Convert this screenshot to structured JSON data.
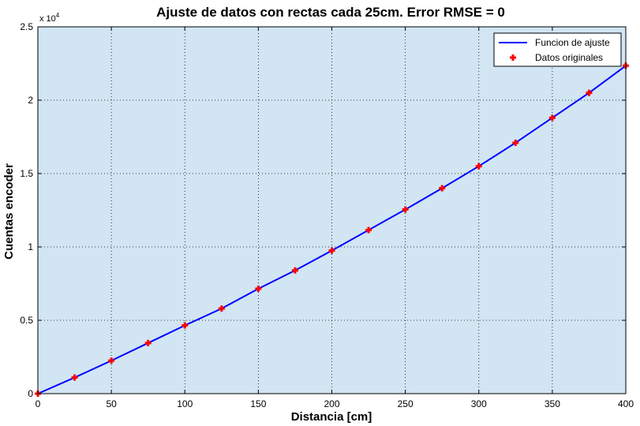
{
  "chart_data": {
    "type": "line",
    "title": "Ajuste de datos con rectas cada 25cm. Error RMSE = 0",
    "xlabel": "Distancia [cm]",
    "ylabel": "Cuentas encoder",
    "xlim": [
      0,
      400
    ],
    "ylim": [
      0,
      25000
    ],
    "x_ticks": [
      0,
      50,
      100,
      150,
      200,
      250,
      300,
      350,
      400
    ],
    "x_tick_labels": [
      "0",
      "50",
      "100",
      "150",
      "200",
      "250",
      "300",
      "350",
      "400"
    ],
    "y_ticks": [
      0,
      5000,
      10000,
      15000,
      20000,
      25000
    ],
    "y_tick_labels": [
      "0",
      "0.5",
      "1",
      "1.5",
      "2",
      "2.5"
    ],
    "y_exponent_label": "x 10",
    "y_exponent_power": "4",
    "grid": true,
    "background_color": "#d1e5f3",
    "legend_position": "top-right",
    "series": [
      {
        "name": "Funcion de ajuste",
        "style": "line",
        "color": "#0000ff",
        "x": [
          0,
          25,
          50,
          75,
          100,
          125,
          150,
          175,
          200,
          225,
          250,
          275,
          300,
          325,
          350,
          375,
          400
        ],
        "y": [
          0,
          1100,
          2250,
          3450,
          4650,
          5800,
          7150,
          8400,
          9750,
          11150,
          12550,
          14000,
          15500,
          17100,
          18800,
          20500,
          22350
        ]
      },
      {
        "name": "Datos originales",
        "style": "markers",
        "color": "#ff0000",
        "x": [
          0,
          25,
          50,
          75,
          100,
          125,
          150,
          175,
          200,
          225,
          250,
          275,
          300,
          325,
          350,
          375,
          400
        ],
        "y": [
          0,
          1100,
          2250,
          3450,
          4650,
          5800,
          7150,
          8400,
          9750,
          11150,
          12550,
          14000,
          15500,
          17100,
          18800,
          20500,
          22350
        ]
      }
    ]
  }
}
